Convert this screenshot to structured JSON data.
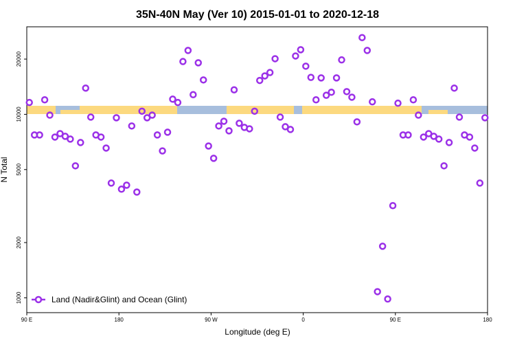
{
  "chart_data": {
    "type": "scatter",
    "title": "35N-40N May (Ver 10)   2015-01-01 to 2020-12-18",
    "x_label": "Longitude (deg E)",
    "y_label": "N Total",
    "xlim": [
      90,
      540
    ],
    "xticks": [
      {
        "value": 90,
        "label": "90 E"
      },
      180,
      {
        "value": 270,
        "label": "90 W"
      },
      {
        "value": 360,
        "label": "0"
      },
      {
        "value": 450,
        "label": "90 E"
      },
      {
        "value": 540,
        "label": "180"
      }
    ],
    "ylim": [
      830,
      30000
    ],
    "yticks": [
      1000,
      2000,
      5000,
      10000,
      20000
    ],
    "log_y": true,
    "legend_position": "bottom-left",
    "series": [
      {
        "name": "Land (Nadir&Glint) and Ocean (Glint)",
        "color": "#9b30e8",
        "x": [
          92.5,
          97.5,
          102.5,
          107.5,
          112.5,
          117.5,
          122.5,
          127.5,
          132.5,
          137.5,
          142.5,
          147.5,
          152.5,
          157.5,
          162.5,
          167.5,
          172.5,
          177.5,
          182.5,
          187.5,
          192.5,
          197.5,
          202.5,
          207.5,
          212.5,
          217.5,
          222.5,
          227.5,
          232.5,
          237.5,
          242.5,
          247.5,
          252.5,
          257.5,
          262.5,
          267.5,
          272.5,
          277.5,
          282.5,
          287.5,
          292.5,
          297.5,
          302.5,
          307.5,
          312.5,
          317.5,
          322.5,
          327.5,
          332.5,
          337.5,
          342.5,
          347.5,
          352.5,
          357.5,
          362.5,
          367.5,
          372.5,
          377.5,
          382.5,
          387.5,
          392.5,
          397.5,
          402.5,
          407.5,
          412.5,
          417.5,
          422.5,
          427.5,
          432.5,
          437.5,
          442.5,
          447.5,
          452.5,
          457.5,
          462.5,
          467.5,
          472.5,
          477.5,
          482.5,
          487.5,
          492.5,
          497.5,
          502.5,
          507.5,
          512.5,
          517.5,
          522.5,
          527.5,
          532.5,
          537.5
        ],
        "values": [
          11600,
          7720,
          7720,
          12000,
          9900,
          7520,
          7850,
          7590,
          7330,
          5240,
          7020,
          13900,
          9660,
          7720,
          7520,
          6550,
          4220,
          9580,
          3910,
          4110,
          8640,
          3770,
          10400,
          9580,
          9900,
          7720,
          6320,
          7990,
          12100,
          11600,
          19400,
          22300,
          12800,
          19100,
          15400,
          6720,
          5760,
          8640,
          9170,
          8130,
          13600,
          8940,
          8490,
          8340,
          10400,
          15300,
          16200,
          16900,
          20100,
          9660,
          8560,
          8270,
          20800,
          22500,
          18300,
          15900,
          12000,
          15800,
          12700,
          13200,
          15800,
          19800,
          13300,
          12400,
          9100,
          26200,
          22300,
          11700,
          1080,
          1910,
          985,
          3180,
          11500,
          7720,
          7720,
          12000,
          9900,
          7520,
          7850,
          7590,
          7330,
          5240,
          7020,
          13900,
          9660,
          7720,
          7520,
          6550,
          4220,
          9580
        ]
      }
    ]
  }
}
